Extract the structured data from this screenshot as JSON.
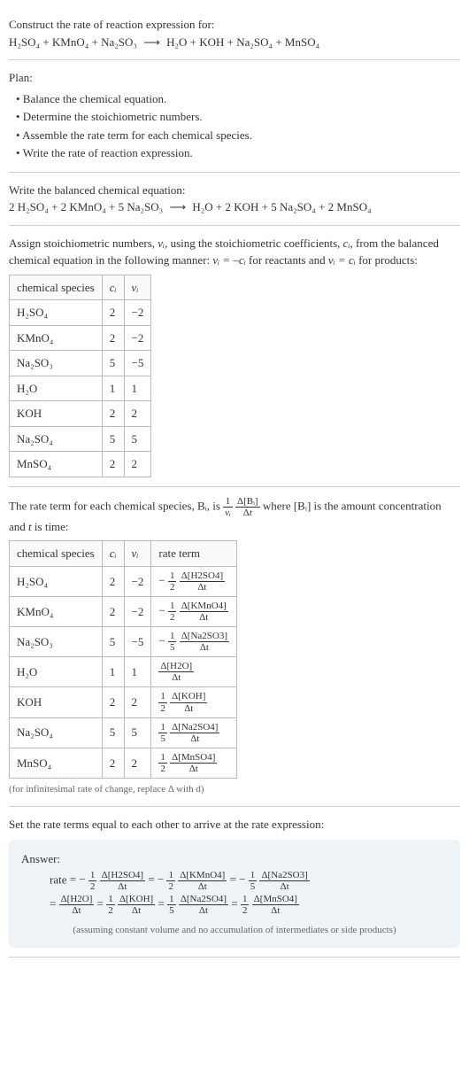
{
  "intro": {
    "title": "Construct the rate of reaction expression for:",
    "equation_lhs": "H₂SO₄ + KMnO₄ + Na₂SO₃",
    "equation_rhs": "H₂O + KOH + Na₂SO₄ + MnSO₄"
  },
  "plan": {
    "heading": "Plan:",
    "items": [
      "• Balance the chemical equation.",
      "• Determine the stoichiometric numbers.",
      "• Assemble the rate term for each chemical species.",
      "• Write the rate of reaction expression."
    ]
  },
  "balanced": {
    "heading": "Write the balanced chemical equation:",
    "lhs": "2 H₂SO₄ + 2 KMnO₄ + 5 Na₂SO₃",
    "rhs": "H₂O + 2 KOH + 5 Na₂SO₄ + 2 MnSO₄"
  },
  "stoich": {
    "text_a": "Assign stoichiometric numbers, ",
    "nu_i": "νᵢ",
    "text_b": ", using the stoichiometric coefficients, ",
    "c_i": "cᵢ",
    "text_c": ", from the balanced chemical equation in the following manner: ",
    "rel1": "νᵢ = –cᵢ",
    "text_d": " for reactants and ",
    "rel2": "νᵢ = cᵢ",
    "text_e": " for products:",
    "headers": [
      "chemical species",
      "cᵢ",
      "νᵢ"
    ],
    "rows": [
      [
        "H₂SO₄",
        "2",
        "−2"
      ],
      [
        "KMnO₄",
        "2",
        "−2"
      ],
      [
        "Na₂SO₃",
        "5",
        "−5"
      ],
      [
        "H₂O",
        "1",
        "1"
      ],
      [
        "KOH",
        "2",
        "2"
      ],
      [
        "Na₂SO₄",
        "5",
        "5"
      ],
      [
        "MnSO₄",
        "2",
        "2"
      ]
    ]
  },
  "rateterm": {
    "text_a": "The rate term for each chemical species, Bᵢ, is ",
    "text_b": " where [Bᵢ] is the amount concentration and ",
    "t": "t",
    "text_c": " is time:",
    "headers": [
      "chemical species",
      "cᵢ",
      "νᵢ",
      "rate term"
    ],
    "rows": [
      {
        "sp": "H₂SO₄",
        "c": "2",
        "nu": "−2",
        "neg": true,
        "fn": "1",
        "fd": "2",
        "d": "Δ[H2SO4]"
      },
      {
        "sp": "KMnO₄",
        "c": "2",
        "nu": "−2",
        "neg": true,
        "fn": "1",
        "fd": "2",
        "d": "Δ[KMnO4]"
      },
      {
        "sp": "Na₂SO₃",
        "c": "5",
        "nu": "−5",
        "neg": true,
        "fn": "1",
        "fd": "5",
        "d": "Δ[Na2SO3]"
      },
      {
        "sp": "H₂O",
        "c": "1",
        "nu": "1",
        "neg": false,
        "fn": "",
        "fd": "",
        "d": "Δ[H2O]"
      },
      {
        "sp": "KOH",
        "c": "2",
        "nu": "2",
        "neg": false,
        "fn": "1",
        "fd": "2",
        "d": "Δ[KOH]"
      },
      {
        "sp": "Na₂SO₄",
        "c": "5",
        "nu": "5",
        "neg": false,
        "fn": "1",
        "fd": "5",
        "d": "Δ[Na2SO4]"
      },
      {
        "sp": "MnSO₄",
        "c": "2",
        "nu": "2",
        "neg": false,
        "fn": "1",
        "fd": "2",
        "d": "Δ[MnSO4]"
      }
    ],
    "note": "(for infinitesimal rate of change, replace Δ with d)"
  },
  "final": {
    "heading": "Set the rate terms equal to each other to arrive at the rate expression:",
    "answer_label": "Answer:",
    "rate_label": "rate",
    "terms_line1": [
      {
        "neg": true,
        "fn": "1",
        "fd": "2",
        "d": "Δ[H2SO4]"
      },
      {
        "neg": true,
        "fn": "1",
        "fd": "2",
        "d": "Δ[KMnO4]"
      },
      {
        "neg": true,
        "fn": "1",
        "fd": "5",
        "d": "Δ[Na2SO3]"
      }
    ],
    "terms_line2": [
      {
        "neg": false,
        "fn": "",
        "fd": "",
        "d": "Δ[H2O]"
      },
      {
        "neg": false,
        "fn": "1",
        "fd": "2",
        "d": "Δ[KOH]"
      },
      {
        "neg": false,
        "fn": "1",
        "fd": "5",
        "d": "Δ[Na2SO4]"
      },
      {
        "neg": false,
        "fn": "1",
        "fd": "2",
        "d": "Δ[MnSO4]"
      }
    ],
    "note": "(assuming constant volume and no accumulation of intermediates or side products)"
  },
  "dt": "Δt"
}
